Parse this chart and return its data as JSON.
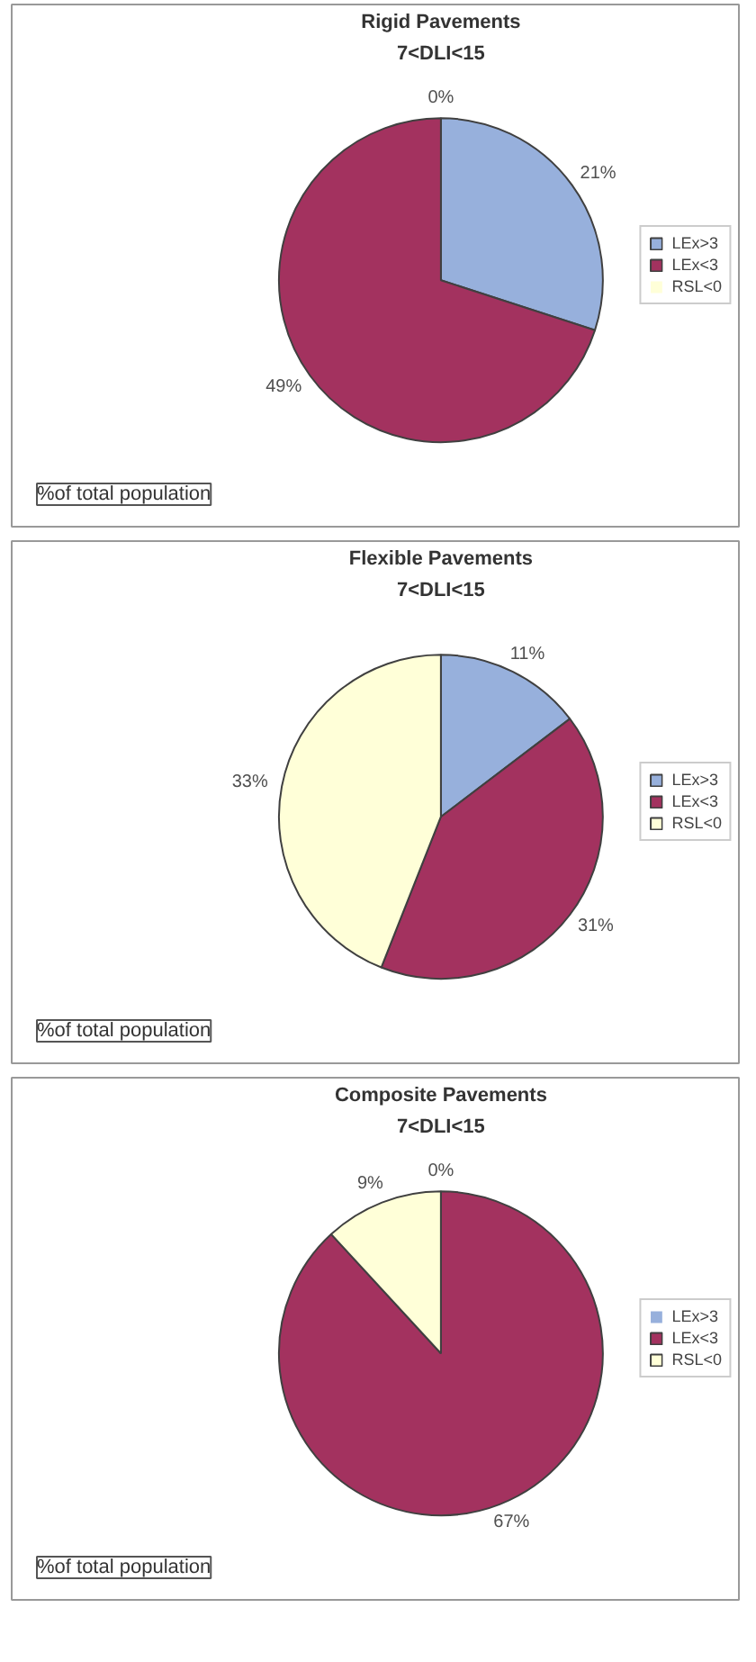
{
  "chart_data": [
    {
      "type": "pie",
      "title": "Rigid Pavements",
      "subtitle": "7<DLI<15",
      "categories": [
        "LEx>3",
        "LEx<3",
        "RSL<0"
      ],
      "values": [
        21,
        49,
        0
      ],
      "colors": [
        "#97b0dc",
        "#a3325f",
        "#ffffd8"
      ],
      "value_labels": [
        "21%",
        "49%",
        "0%"
      ],
      "legend": "right",
      "annotations": [
        "%of total population"
      ]
    },
    {
      "type": "pie",
      "title": "Flexible Pavements",
      "subtitle": "7<DLI<15",
      "categories": [
        "LEx>3",
        "LEx<3",
        "RSL<0"
      ],
      "values": [
        11,
        31,
        33
      ],
      "colors": [
        "#97b0dc",
        "#a3325f",
        "#ffffd8"
      ],
      "value_labels": [
        "11%",
        "31%",
        "33%"
      ],
      "legend": "right",
      "annotations": [
        "%of total population"
      ]
    },
    {
      "type": "pie",
      "title": "Composite Pavements",
      "subtitle": "7<DLI<15",
      "categories": [
        "LEx>3",
        "LEx<3",
        "RSL<0"
      ],
      "values": [
        0,
        67,
        9
      ],
      "colors": [
        "#97b0dc",
        "#a3325f",
        "#ffffd8"
      ],
      "value_labels": [
        "0%",
        "67%",
        "9%"
      ],
      "legend": "right",
      "annotations": [
        "%of total population"
      ]
    }
  ]
}
